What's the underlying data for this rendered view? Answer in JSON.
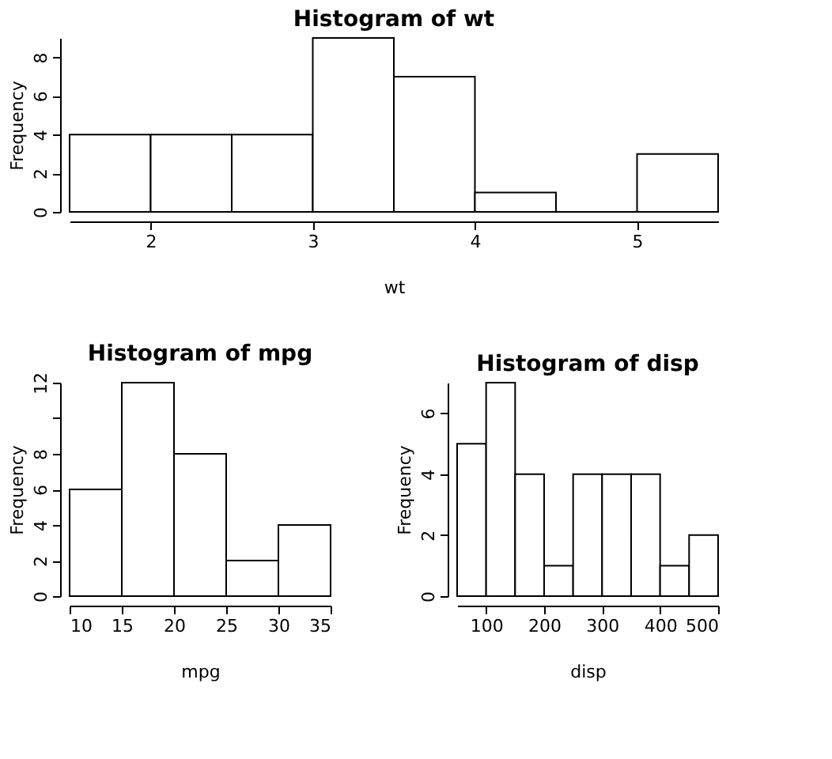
{
  "chart_data": [
    {
      "type": "histogram",
      "title": "Histogram of wt",
      "xlabel": "wt",
      "ylabel": "Frequency",
      "bins": [
        1.5,
        2,
        2.5,
        3,
        3.5,
        4,
        4.5,
        5,
        5.5
      ],
      "values": [
        4,
        4,
        4,
        9,
        7,
        1,
        0,
        3
      ],
      "xlim": [
        1.5,
        5.5
      ],
      "xticks": [
        2,
        3,
        4,
        5
      ],
      "ylim": [
        0,
        9
      ],
      "yticks": [
        0,
        2,
        4,
        6,
        8
      ]
    },
    {
      "type": "histogram",
      "title": "Histogram of mpg",
      "xlabel": "mpg",
      "ylabel": "Frequency",
      "bins": [
        10,
        15,
        20,
        25,
        30,
        35
      ],
      "values": [
        6,
        12,
        8,
        2,
        4
      ],
      "xlim": [
        10,
        35
      ],
      "xticks": [
        10,
        15,
        20,
        25,
        30,
        35
      ],
      "ylim": [
        0,
        12
      ],
      "yticks": [
        0,
        2,
        4,
        6,
        8,
        {
          "value": 10,
          "label": null
        },
        12
      ]
    },
    {
      "type": "histogram",
      "title": "Histogram of disp",
      "xlabel": "disp",
      "ylabel": "Frequency",
      "bins": [
        50,
        100,
        150,
        200,
        250,
        300,
        350,
        400,
        450,
        500
      ],
      "values": [
        5,
        7,
        4,
        1,
        4,
        4,
        4,
        1,
        2
      ],
      "xlim": [
        50,
        500
      ],
      "xticks": [
        100,
        200,
        300,
        400,
        500
      ],
      "ylim": [
        0,
        7
      ],
      "yticks": [
        0,
        2,
        4,
        6
      ]
    }
  ]
}
